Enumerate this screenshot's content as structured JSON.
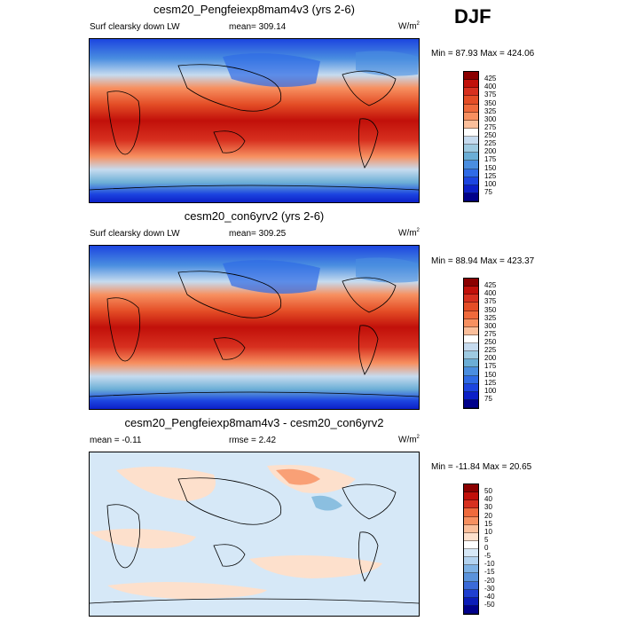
{
  "season": "DJF",
  "panels": [
    {
      "title": "cesm20_Pengfeiexp8mam4v3 (yrs 2-6)",
      "left_label": "Surf clearsky down LW",
      "center_label": "mean= 309.14",
      "units": "W/m",
      "units_sup": "2",
      "minmax": "Min =  87.93 Max = 424.06",
      "colorbar": {
        "labels": [
          "425",
          "400",
          "375",
          "350",
          "325",
          "300",
          "275",
          "250",
          "225",
          "200",
          "175",
          "150",
          "125",
          "100",
          "75"
        ],
        "colors": [
          "#8b0000",
          "#c1100a",
          "#d7301f",
          "#e44d26",
          "#ef6a3c",
          "#f79060",
          "#fbbf9b",
          "#ffffff",
          "#c6dbef",
          "#9ecae1",
          "#6baed6",
          "#4a8ee0",
          "#2f6be6",
          "#1c45e0",
          "#0c20c8",
          "#00008b"
        ]
      }
    },
    {
      "title": "cesm20_con6yrv2 (yrs 2-6)",
      "left_label": "Surf clearsky down LW",
      "center_label": "mean= 309.25",
      "units": "W/m",
      "units_sup": "2",
      "minmax": "Min =  88.94 Max = 423.37",
      "colorbar": {
        "labels": [
          "425",
          "400",
          "375",
          "350",
          "325",
          "300",
          "275",
          "250",
          "225",
          "200",
          "175",
          "150",
          "125",
          "100",
          "75"
        ],
        "colors": [
          "#8b0000",
          "#c1100a",
          "#d7301f",
          "#e44d26",
          "#ef6a3c",
          "#f79060",
          "#fbbf9b",
          "#ffffff",
          "#c6dbef",
          "#9ecae1",
          "#6baed6",
          "#4a8ee0",
          "#2f6be6",
          "#1c45e0",
          "#0c20c8",
          "#00008b"
        ]
      }
    },
    {
      "title": "cesm20_Pengfeiexp8mam4v3 - cesm20_con6yrv2",
      "left_label": "mean =  -0.11",
      "center_label": "rmse =   2.42",
      "units": "W/m",
      "units_sup": "2",
      "minmax": "Min = -11.84 Max =  20.65",
      "colorbar": {
        "labels": [
          "50",
          "40",
          "30",
          "20",
          "15",
          "10",
          "5",
          "0",
          "-5",
          "-10",
          "-15",
          "-20",
          "-30",
          "-40",
          "-50"
        ],
        "colors": [
          "#8b0000",
          "#c1100a",
          "#d7301f",
          "#ef6a3c",
          "#f79060",
          "#fbbf9b",
          "#fde0cc",
          "#ffffff",
          "#d6e8f7",
          "#b3d3f0",
          "#7fb2e5",
          "#5a93dc",
          "#3a6ad8",
          "#1f3fd0",
          "#0b1cb8",
          "#00008b"
        ]
      }
    }
  ]
}
